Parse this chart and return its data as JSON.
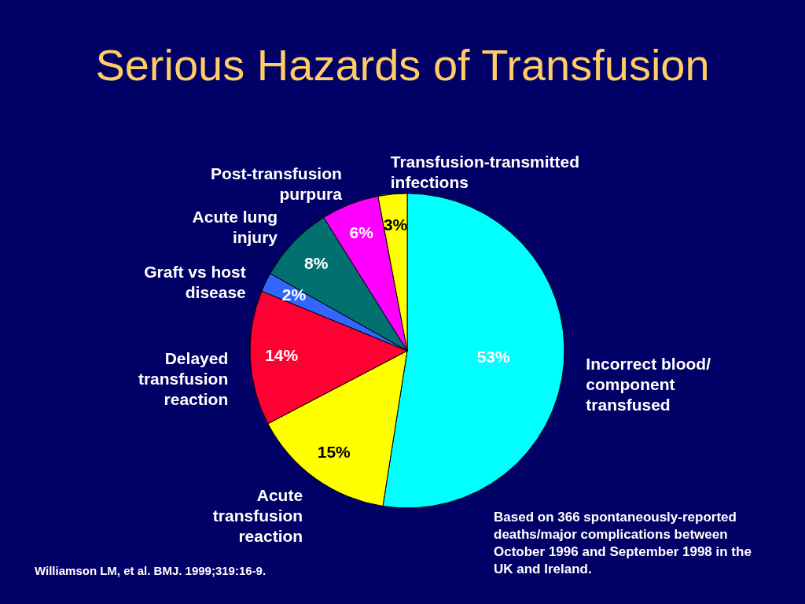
{
  "chart_data": {
    "type": "pie",
    "title": "Serious Hazards of Transfusion",
    "categories": [
      "Incorrect blood/ component transfused",
      "Acute transfusion reaction",
      "Delayed transfusion reaction",
      "Graft vs host disease",
      "Acute lung injury",
      "Post-transfusion purpura",
      "Transfusion-transmitted infections"
    ],
    "values": [
      53,
      15,
      14,
      2,
      8,
      6,
      3
    ],
    "value_labels": [
      "53%",
      "15%",
      "14%",
      "2%",
      "8%",
      "6%",
      "3%"
    ],
    "colors": [
      "#00ffff",
      "#ffff00",
      "#ff0033",
      "#3366ff",
      "#007070",
      "#ff00ff",
      "#ffff00"
    ],
    "annotations": [
      "Based on 366 spontaneously-reported deaths/major complications between October 1996 and September 1998 in the UK and Ireland.",
      "Williamson LM, et al. BMJ. 1999;319:16-9."
    ]
  }
}
